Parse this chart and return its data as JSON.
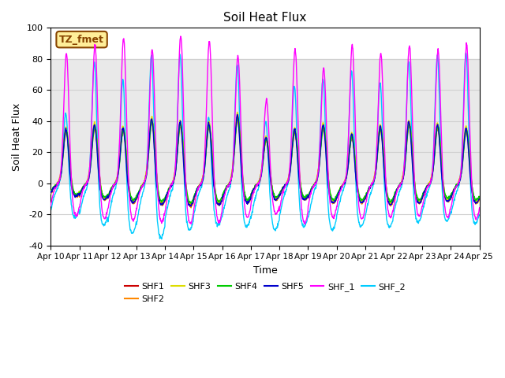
{
  "title": "Soil Heat Flux",
  "xlabel": "Time",
  "ylabel": "Soil Heat Flux",
  "ylim": [
    -40,
    100
  ],
  "xlim": [
    0,
    15
  ],
  "yticks": [
    -40,
    -20,
    0,
    20,
    40,
    60,
    80,
    100
  ],
  "xtick_labels": [
    "Apr 10",
    "Apr 11",
    "Apr 12",
    "Apr 13",
    "Apr 14",
    "Apr 15",
    "Apr 16",
    "Apr 17",
    "Apr 18",
    "Apr 19",
    "Apr 20",
    "Apr 21",
    "Apr 22",
    "Apr 23",
    "Apr 24",
    "Apr 25"
  ],
  "shaded_ymin": 0,
  "shaded_ymax": 80,
  "tz_label": "TZ_fmet",
  "series_colors": {
    "SHF1": "#cc0000",
    "SHF2": "#ff8800",
    "SHF3": "#dddd00",
    "SHF4": "#00cc00",
    "SHF5": "#0000cc",
    "SHF_1": "#ff00ff",
    "SHF_2": "#00ccff"
  },
  "background_color": "#ffffff",
  "grid_color": "#d0d0d0",
  "day_peaks_shf15": [
    35,
    38,
    36,
    42,
    40,
    39,
    44,
    30,
    35,
    38,
    32,
    37,
    40,
    38,
    36
  ],
  "day_peaks_shf1": [
    85,
    90,
    95,
    88,
    97,
    93,
    83,
    55,
    88,
    75,
    90,
    85,
    90,
    87,
    91
  ],
  "day_peaks_shf2": [
    51,
    85,
    75,
    92,
    91,
    50,
    84,
    48,
    70,
    75,
    80,
    72,
    85,
    88,
    91
  ],
  "day_troughs_shf15": [
    -8,
    -10,
    -12,
    -13,
    -14,
    -13,
    -12,
    -10,
    -10,
    -12,
    -12,
    -13,
    -12,
    -11,
    -12
  ],
  "day_troughs_shf1": [
    -21,
    -23,
    -24,
    -25,
    -26,
    -25,
    -22,
    -20,
    -26,
    -22,
    -23,
    -22,
    -21,
    -22,
    -23
  ],
  "day_troughs_shf2": [
    -22,
    -27,
    -32,
    -35,
    -30,
    -27,
    -28,
    -30,
    -28,
    -30,
    -28,
    -28,
    -25,
    -24,
    -26
  ]
}
